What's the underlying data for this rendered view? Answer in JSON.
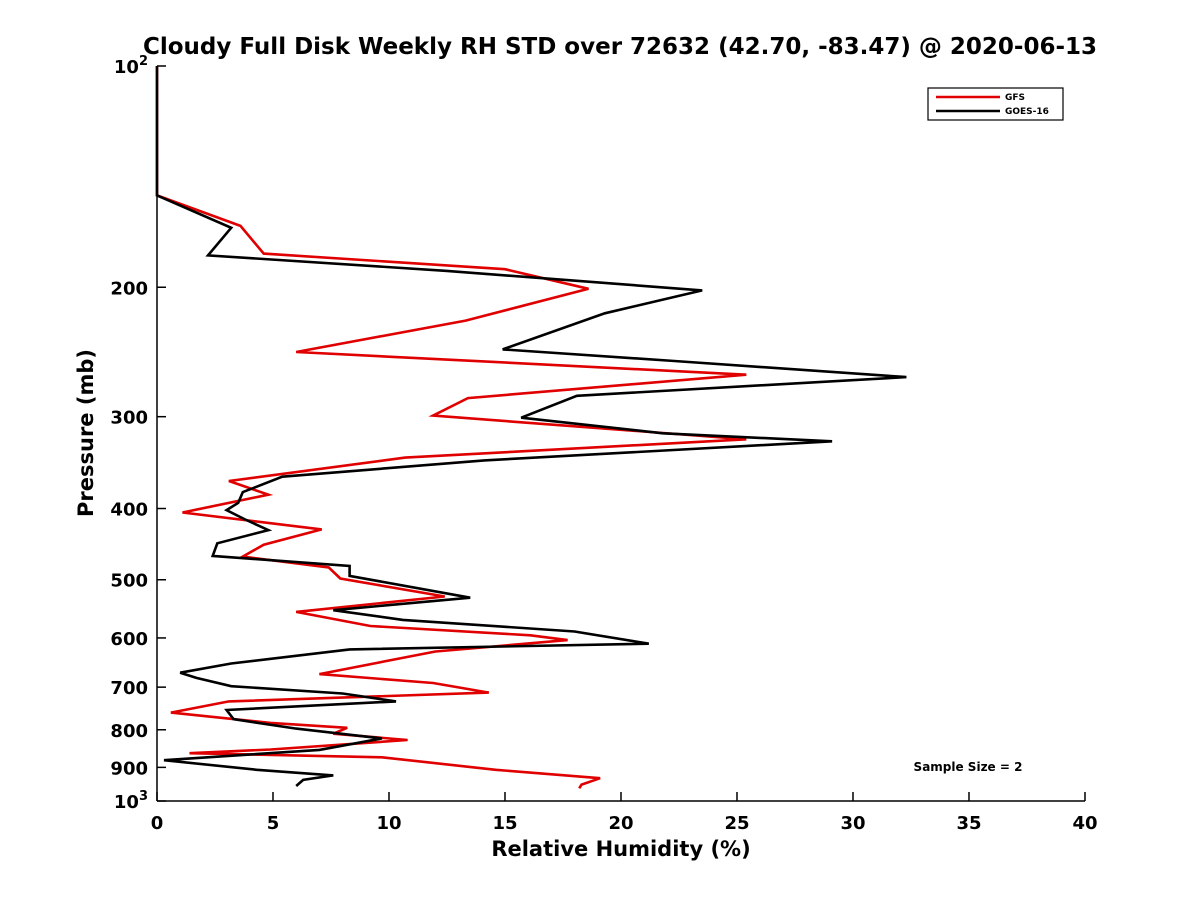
{
  "chart_data": {
    "type": "line",
    "title": "Cloudy Full Disk Weekly RH STD over 72632 (42.70, -83.47) @ 2020-06-13",
    "xlabel": "Relative Humidity (%)",
    "ylabel": "Pressure (mb)",
    "xlim": [
      0,
      40
    ],
    "ylim": [
      100,
      1000
    ],
    "y_scale": "log",
    "y_reversed": true,
    "grid": false,
    "legend_position": "top-right",
    "x_ticks": [
      "0",
      "5",
      "10",
      "15",
      "20",
      "25",
      "30",
      "35",
      "40"
    ],
    "y_ticks": [
      {
        "value": 100,
        "base": "10",
        "exp": "2"
      },
      {
        "value": 200,
        "label": "200"
      },
      {
        "value": 300,
        "label": "300"
      },
      {
        "value": 400,
        "label": "400"
      },
      {
        "value": 500,
        "label": "500"
      },
      {
        "value": 600,
        "label": "600"
      },
      {
        "value": 700,
        "label": "700"
      },
      {
        "value": 800,
        "label": "800"
      },
      {
        "value": 900,
        "label": "900"
      },
      {
        "value": 1000,
        "base": "10",
        "exp": "3"
      }
    ],
    "annotation": "Sample Size = 2",
    "series": [
      {
        "name": "GFS",
        "color": "#e00000",
        "points": [
          [
            0,
            100
          ],
          [
            0,
            125
          ],
          [
            0,
            150
          ],
          [
            3.6,
            165
          ],
          [
            4.6,
            180
          ],
          [
            15,
            189
          ],
          [
            18.6,
            201
          ],
          [
            13.3,
            222
          ],
          [
            6.0,
            245
          ],
          [
            25.4,
            263
          ],
          [
            13.4,
            283
          ],
          [
            11.9,
            299
          ],
          [
            25.4,
            322
          ],
          [
            10.7,
            341
          ],
          [
            3.1,
            367
          ],
          [
            4.8,
            383
          ],
          [
            1.1,
            405
          ],
          [
            7.1,
            427
          ],
          [
            4.6,
            448
          ],
          [
            3.7,
            465
          ],
          [
            7.4,
            481
          ],
          [
            7.9,
            498
          ],
          [
            12.4,
            527
          ],
          [
            6.0,
            553
          ],
          [
            9.2,
            578
          ],
          [
            16.1,
            595
          ],
          [
            17.7,
            604
          ],
          [
            12.0,
            626
          ],
          [
            7.0,
            672
          ],
          [
            11.9,
            691
          ],
          [
            14.3,
            712
          ],
          [
            3.1,
            732
          ],
          [
            0.6,
            758
          ],
          [
            4.9,
            783
          ],
          [
            8.2,
            795
          ],
          [
            7.6,
            810
          ],
          [
            10.8,
            826
          ],
          [
            4.9,
            851
          ],
          [
            1.4,
            861
          ],
          [
            9.7,
            872
          ],
          [
            14.6,
            907
          ],
          [
            19.1,
            931
          ],
          [
            18.3,
            950
          ],
          [
            18.2,
            961
          ]
        ]
      },
      {
        "name": "GOES-16",
        "color": "#000000",
        "points": [
          [
            0,
            100
          ],
          [
            0,
            125
          ],
          [
            0,
            150
          ],
          [
            3.2,
            166
          ],
          [
            2.2,
            181
          ],
          [
            12.5,
            190
          ],
          [
            23.5,
            202
          ],
          [
            19.3,
            217
          ],
          [
            14.9,
            243
          ],
          [
            22.3,
            252
          ],
          [
            32.3,
            265
          ],
          [
            18.1,
            281
          ],
          [
            15.7,
            301
          ],
          [
            21.8,
            316
          ],
          [
            29.1,
            324
          ],
          [
            14.1,
            344
          ],
          [
            5.4,
            362
          ],
          [
            3.7,
            380
          ],
          [
            3.5,
            393
          ],
          [
            3.0,
            402
          ],
          [
            3.8,
            414
          ],
          [
            4.8,
            428
          ],
          [
            2.6,
            446
          ],
          [
            2.4,
            464
          ],
          [
            8.3,
            479
          ],
          [
            8.3,
            494
          ],
          [
            13.5,
            529
          ],
          [
            7.6,
            550
          ],
          [
            10.6,
            567
          ],
          [
            18.0,
            588
          ],
          [
            21.2,
            611
          ],
          [
            8.3,
            622
          ],
          [
            3.2,
            650
          ],
          [
            1.0,
            669
          ],
          [
            1.7,
            680
          ],
          [
            3.2,
            698
          ],
          [
            8.0,
            714
          ],
          [
            10.3,
            732
          ],
          [
            3.0,
            752
          ],
          [
            3.3,
            774
          ],
          [
            6.0,
            797
          ],
          [
            9.7,
            822
          ],
          [
            7.0,
            852
          ],
          [
            0.3,
            880
          ],
          [
            4.3,
            907
          ],
          [
            7.6,
            923
          ],
          [
            6.3,
            936
          ],
          [
            6.0,
            954
          ]
        ]
      }
    ]
  }
}
